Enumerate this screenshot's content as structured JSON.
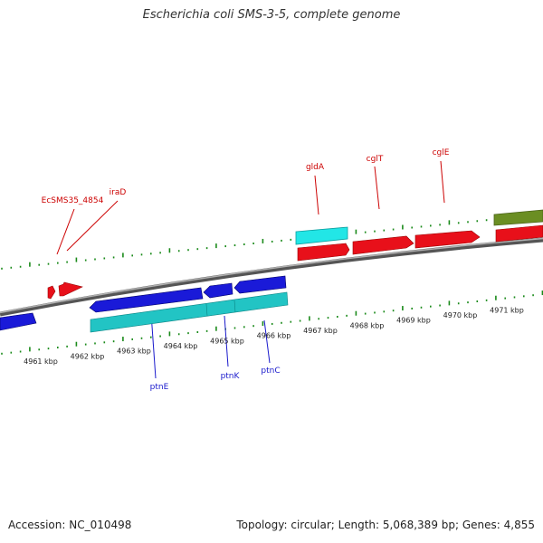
{
  "title": "Escherichia coli SMS-3-5, complete genome",
  "footer": {
    "accession": "Accession: NC_010498",
    "summary": "Topology: circular; Length: 5,068,389 bp; Genes: 4,855"
  },
  "colors": {
    "forward_gene": "#e8101a",
    "reverse_gene": "#1a1ad8",
    "highlight_cyan": "#22e6e6",
    "teal_band": "#22c4c4",
    "olive_band": "#6b8e23",
    "tick_green": "#1a8a1a",
    "backbone": "#8a8a8a"
  },
  "kbp_labels": [
    {
      "text": "4961 kbp",
      "kbp": 4961
    },
    {
      "text": "4962 kbp",
      "kbp": 4962
    },
    {
      "text": "4963 kbp",
      "kbp": 4963
    },
    {
      "text": "4964 kbp",
      "kbp": 4964
    },
    {
      "text": "4965 kbp",
      "kbp": 4965
    },
    {
      "text": "4966 kbp",
      "kbp": 4966
    },
    {
      "text": "4967 kbp",
      "kbp": 4967
    },
    {
      "text": "4968 kbp",
      "kbp": 4968
    },
    {
      "text": "4969 kbp",
      "kbp": 4969
    },
    {
      "text": "4970 kbp",
      "kbp": 4970
    },
    {
      "text": "4971 kbp",
      "kbp": 4971
    }
  ],
  "top_gene_labels": [
    {
      "text": "EcSMS35_4854",
      "kbp": 4961.55
    },
    {
      "text": "iraD",
      "kbp": 4961.75
    },
    {
      "text": "gldA",
      "kbp": 4966.95
    },
    {
      "text": "cglT",
      "kbp": 4968.1
    },
    {
      "text": "cglE",
      "kbp": 4969.4
    }
  ],
  "bottom_gene_labels": [
    {
      "text": "ptnE",
      "kbp": 4963.2
    },
    {
      "text": "ptnK",
      "kbp": 4964.85
    },
    {
      "text": "ptnC",
      "kbp": 4965.5
    }
  ]
}
